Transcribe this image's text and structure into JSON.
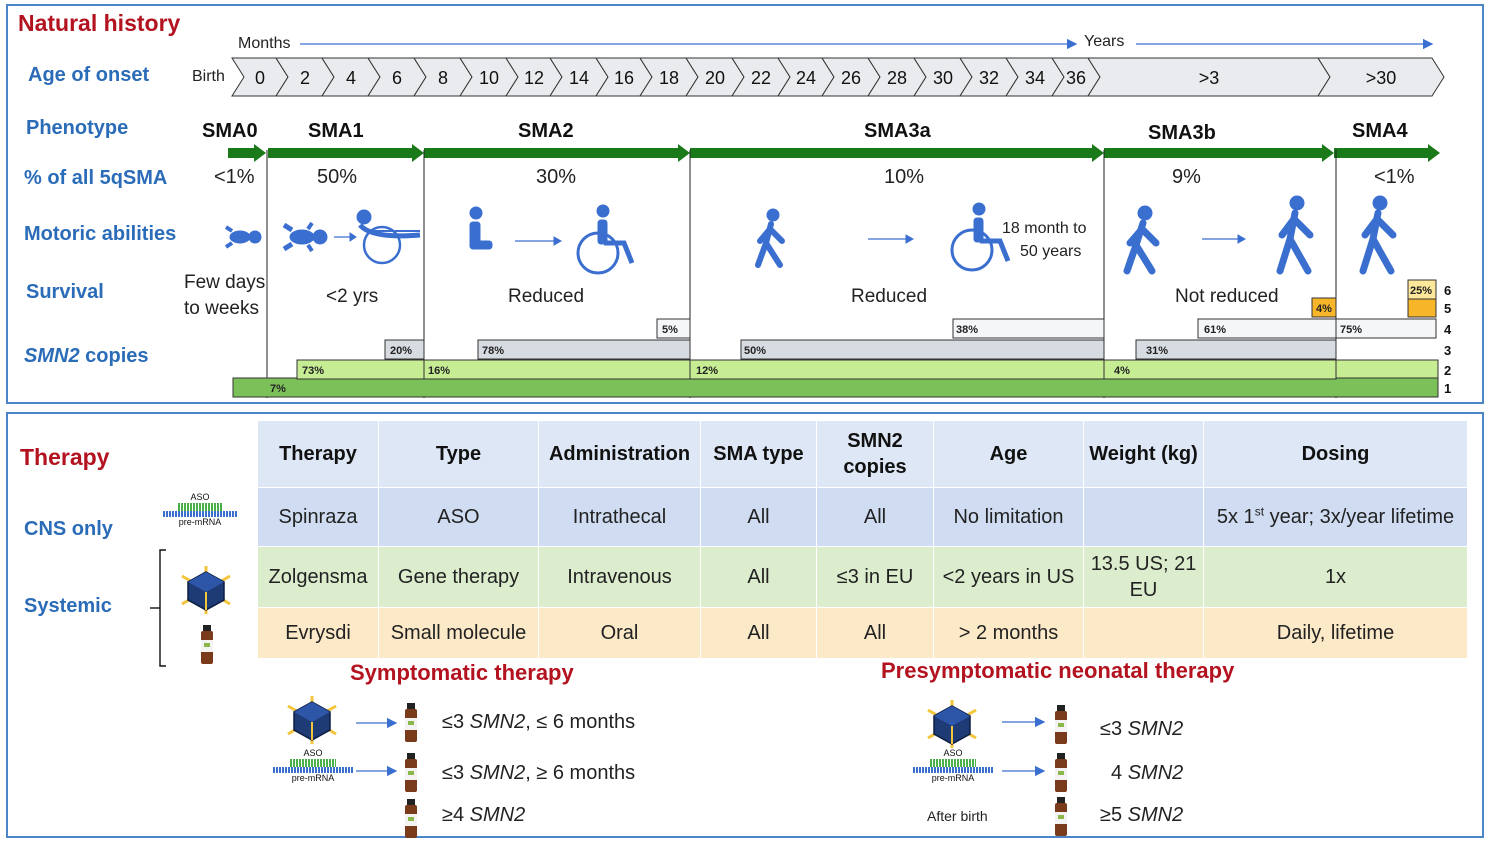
{
  "natural_history": {
    "title": "Natural history",
    "months_label": "Months",
    "years_label": "Years",
    "row_labels": {
      "age_of_onset": "Age of onset",
      "phenotype": "Phenotype",
      "percent": "% of all 5qSMA",
      "motoric": "Motoric abilities",
      "survival": "Survival",
      "smn2_italic": "SMN2",
      "smn2_rest": " copies"
    },
    "birth_label": "Birth",
    "age_ticks": [
      "0",
      "2",
      "4",
      "6",
      "8",
      "10",
      "12",
      "14",
      "16",
      "18",
      "20",
      "22",
      "24",
      "26",
      "28",
      "30",
      "32",
      "34",
      "36",
      ">3",
      ">30"
    ],
    "phenotypes": [
      {
        "name": "SMA0",
        "percent": "<1%",
        "survival": "Few days to weeks"
      },
      {
        "name": "SMA1",
        "percent": "50%",
        "survival": "<2 yrs"
      },
      {
        "name": "SMA2",
        "percent": "30%",
        "survival": "Reduced"
      },
      {
        "name": "SMA3a",
        "percent": "10%",
        "survival": "Reduced"
      },
      {
        "name": "SMA3b",
        "percent": "9%",
        "survival": "Not reduced"
      },
      {
        "name": "SMA4",
        "percent": "<1%",
        "survival": ""
      }
    ],
    "survival_sma0_line1": "Few days",
    "survival_sma0_line2": "to weeks",
    "sma3a_note_line1": "18 month to",
    "sma3a_note_line2": "50 years",
    "smn2_copy_numbers": [
      "1",
      "2",
      "3",
      "4",
      "5",
      "6"
    ],
    "smn2_bars": [
      {
        "label": "7%"
      },
      {
        "label": "73%"
      },
      {
        "label": "20%"
      },
      {
        "label": "16%"
      },
      {
        "label": "78%"
      },
      {
        "label": "5%"
      },
      {
        "label": "12%"
      },
      {
        "label": "50%"
      },
      {
        "label": "38%"
      },
      {
        "label": "4%"
      },
      {
        "label": "31%"
      },
      {
        "label": "61%"
      },
      {
        "label": "4%"
      },
      {
        "label": "75%"
      },
      {
        "label": "25%"
      }
    ],
    "colors": {
      "arrow_green": "#1a7a1a",
      "bar1": "#7cc05a",
      "bar2": "#c6ec94",
      "bar3": "#d7dbe2",
      "bar4": "#f5f6f8",
      "bar5": "#f7b52a",
      "bar6": "#fde79a",
      "chevron": "#e9ebee",
      "icon_blue": "#3a6fd0"
    }
  },
  "therapy": {
    "title": "Therapy",
    "cns_only": "CNS only",
    "systemic": "Systemic",
    "aso": "ASO",
    "pre_mrna": "pre-mRNA",
    "headers": [
      "Therapy",
      "Type",
      "Administration",
      "SMA type",
      "SMN2 copies",
      "Age",
      "Weight (kg)",
      "Dosing"
    ],
    "rows": [
      {
        "therapy": "Spinraza",
        "type": "ASO",
        "admin": "Intrathecal",
        "sma": "All",
        "copies": "All",
        "age": "No limitation",
        "weight": "",
        "dosing_pre": "5x 1",
        "dosing_sup": "st",
        "dosing_post": " year; 3x/year lifetime"
      },
      {
        "therapy": "Zolgensma",
        "type": "Gene therapy",
        "admin": "Intravenous",
        "sma": "All",
        "copies": "≤3 in EU",
        "age": "<2 years in US",
        "weight": "13.5 US; 21 EU",
        "dosing": "1x"
      },
      {
        "therapy": "Evrysdi",
        "type": "Small molecule",
        "admin": "Oral",
        "sma": "All",
        "copies": "All",
        "age": "> 2 months",
        "weight": "",
        "dosing": "Daily, lifetime"
      }
    ],
    "symptomatic": {
      "title": "Symptomatic therapy",
      "items": [
        {
          "pre": "≤3 ",
          "smn": "SMN2",
          "post": ", ≤ 6 months"
        },
        {
          "pre": "≤3 ",
          "smn": "SMN2",
          "post": ", ≥ 6 months"
        },
        {
          "pre": "≥4 ",
          "smn": "SMN2",
          "post": ""
        }
      ]
    },
    "presymptomatic": {
      "title": "Presymptomatic neonatal therapy",
      "after_birth": "After birth",
      "items": [
        {
          "pre": "≤3 ",
          "smn": "SMN2"
        },
        {
          "pre": "4 ",
          "smn": "SMN2"
        },
        {
          "pre": "≥5 ",
          "smn": "SMN2"
        }
      ]
    }
  }
}
